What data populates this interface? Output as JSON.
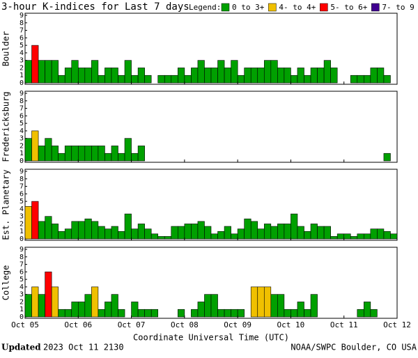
{
  "chart_data": {
    "type": "bar",
    "title": "3-hour K-indices for Last 7 days",
    "legend": {
      "label": "Legend:",
      "items": [
        {
          "name": "0 to 3+",
          "color": "#00a000"
        },
        {
          "name": "4- to 4+",
          "color": "#f0c000"
        },
        {
          "name": "5- to 6+",
          "color": "#ff0000"
        },
        {
          "name": "7- to 9",
          "color": "#400090"
        }
      ]
    },
    "xlabel": "Coordinate Universal Time (UTC)",
    "xticks": [
      "Oct 05",
      "Oct 06",
      "Oct 07",
      "Oct 08",
      "Oct 09",
      "Oct 10",
      "Oct 11",
      "Oct 12"
    ],
    "ylim": [
      0,
      9
    ],
    "yticks": [
      0,
      1,
      2,
      3,
      4,
      5,
      6,
      7,
      8,
      9
    ],
    "footer": {
      "updated_label": "Updated",
      "updated": "2023 Oct 11 2130",
      "credit": "NOAA/SWPC Boulder, CO USA"
    },
    "panels": [
      {
        "name": "Boulder",
        "values": [
          3,
          5,
          3,
          3,
          3,
          1,
          2,
          3,
          2,
          2,
          3,
          1,
          2,
          2,
          1,
          3,
          1,
          2,
          1,
          0,
          1,
          1,
          1,
          2,
          1,
          2,
          3,
          2,
          2,
          3,
          2,
          3,
          1,
          2,
          2,
          2,
          3,
          3,
          2,
          2,
          1,
          2,
          1,
          2,
          2,
          3,
          2,
          0,
          0,
          1,
          1,
          1,
          2,
          2,
          1,
          0
        ],
        "colors": [
          "#00a000",
          "#ff0000",
          "#00a000",
          "#00a000",
          "#00a000",
          "#00a000",
          "#00a000",
          "#00a000",
          "#00a000",
          "#00a000",
          "#00a000",
          "#00a000",
          "#00a000",
          "#00a000",
          "#00a000",
          "#00a000",
          "#00a000",
          "#00a000",
          "#00a000",
          "#00a000",
          "#00a000",
          "#00a000",
          "#00a000",
          "#00a000",
          "#00a000",
          "#00a000",
          "#00a000",
          "#00a000",
          "#00a000",
          "#00a000",
          "#00a000",
          "#00a000",
          "#00a000",
          "#00a000",
          "#00a000",
          "#00a000",
          "#00a000",
          "#00a000",
          "#00a000",
          "#00a000",
          "#00a000",
          "#00a000",
          "#00a000",
          "#00a000",
          "#00a000",
          "#00a000",
          "#00a000",
          "#00a000",
          "#00a000",
          "#00a000",
          "#00a000",
          "#00a000",
          "#00a000",
          "#00a000",
          "#00a000",
          "#00a000"
        ]
      },
      {
        "name": "Fredericksburg",
        "values": [
          3,
          4,
          2,
          3,
          2,
          1,
          2,
          2,
          2,
          2,
          2,
          2,
          1,
          2,
          1,
          3,
          1,
          2,
          0,
          0,
          0,
          0,
          0,
          0,
          0,
          0,
          0,
          0,
          0,
          0,
          0,
          0,
          0,
          0,
          0,
          0,
          0,
          0,
          0,
          0,
          0,
          0,
          0,
          0,
          0,
          0,
          0,
          0,
          0,
          0,
          0,
          0,
          0,
          0,
          1,
          0
        ],
        "colors": [
          "#00a000",
          "#f0c000",
          "#00a000",
          "#00a000",
          "#00a000",
          "#00a000",
          "#00a000",
          "#00a000",
          "#00a000",
          "#00a000",
          "#00a000",
          "#00a000",
          "#00a000",
          "#00a000",
          "#00a000",
          "#00a000",
          "#00a000",
          "#00a000",
          "#00a000",
          "#00a000",
          "#00a000",
          "#00a000",
          "#00a000",
          "#00a000",
          "#00a000",
          "#00a000",
          "#00a000",
          "#00a000",
          "#00a000",
          "#00a000",
          "#00a000",
          "#00a000",
          "#00a000",
          "#00a000",
          "#00a000",
          "#00a000",
          "#00a000",
          "#00a000",
          "#00a000",
          "#00a000",
          "#00a000",
          "#00a000",
          "#00a000",
          "#00a000",
          "#00a000",
          "#00a000",
          "#00a000",
          "#00a000",
          "#00a000",
          "#00a000",
          "#00a000",
          "#00a000",
          "#00a000",
          "#00a000",
          "#00a000",
          "#00a000"
        ]
      },
      {
        "name": "Est. Planetary",
        "values": [
          4.33,
          5,
          2.33,
          3,
          2,
          1,
          1.33,
          2.33,
          2.33,
          2.67,
          2.33,
          1.67,
          1.33,
          1.67,
          1,
          3.33,
          1.33,
          2,
          1.33,
          0.67,
          0.33,
          0.33,
          1.67,
          1.67,
          2,
          2,
          2.33,
          1.67,
          0.67,
          1,
          1.67,
          0.67,
          1.33,
          2.67,
          2.33,
          1.33,
          2,
          1.67,
          2,
          2,
          3.33,
          1.67,
          1,
          2,
          1.67,
          1.67,
          0.33,
          0.67,
          0.67,
          0.33,
          0.67,
          0.67,
          1.33,
          1.33,
          1,
          0.67
        ],
        "colors": [
          "#f0c000",
          "#ff0000",
          "#00a000",
          "#00a000",
          "#00a000",
          "#00a000",
          "#00a000",
          "#00a000",
          "#00a000",
          "#00a000",
          "#00a000",
          "#00a000",
          "#00a000",
          "#00a000",
          "#00a000",
          "#00a000",
          "#00a000",
          "#00a000",
          "#00a000",
          "#00a000",
          "#00a000",
          "#00a000",
          "#00a000",
          "#00a000",
          "#00a000",
          "#00a000",
          "#00a000",
          "#00a000",
          "#00a000",
          "#00a000",
          "#00a000",
          "#00a000",
          "#00a000",
          "#00a000",
          "#00a000",
          "#00a000",
          "#00a000",
          "#00a000",
          "#00a000",
          "#00a000",
          "#00a000",
          "#00a000",
          "#00a000",
          "#00a000",
          "#00a000",
          "#00a000",
          "#00a000",
          "#00a000",
          "#00a000",
          "#00a000",
          "#00a000",
          "#00a000",
          "#00a000",
          "#00a000",
          "#00a000",
          "#00a000"
        ]
      },
      {
        "name": "College",
        "values": [
          3,
          4,
          3,
          6,
          4,
          1,
          1,
          2,
          2,
          3,
          4,
          1,
          2,
          3,
          1,
          0,
          2,
          1,
          1,
          1,
          0,
          0,
          0,
          1,
          0,
          1,
          2,
          3,
          3,
          1,
          1,
          1,
          1,
          0,
          4,
          4,
          4,
          3,
          3,
          1,
          1,
          2,
          1,
          3,
          0,
          0,
          0,
          0,
          0,
          0,
          1,
          2,
          1,
          0,
          0,
          0
        ],
        "colors": [
          "#00a000",
          "#f0c000",
          "#00a000",
          "#ff0000",
          "#f0c000",
          "#00a000",
          "#00a000",
          "#00a000",
          "#00a000",
          "#00a000",
          "#f0c000",
          "#00a000",
          "#00a000",
          "#00a000",
          "#00a000",
          "#00a000",
          "#00a000",
          "#00a000",
          "#00a000",
          "#00a000",
          "#00a000",
          "#00a000",
          "#00a000",
          "#00a000",
          "#00a000",
          "#00a000",
          "#00a000",
          "#00a000",
          "#00a000",
          "#00a000",
          "#00a000",
          "#00a000",
          "#00a000",
          "#00a000",
          "#f0c000",
          "#f0c000",
          "#f0c000",
          "#00a000",
          "#00a000",
          "#00a000",
          "#00a000",
          "#00a000",
          "#00a000",
          "#00a000",
          "#00a000",
          "#00a000",
          "#00a000",
          "#00a000",
          "#00a000",
          "#00a000",
          "#00a000",
          "#00a000",
          "#00a000",
          "#00a000",
          "#00a000",
          "#00a000"
        ]
      }
    ]
  }
}
